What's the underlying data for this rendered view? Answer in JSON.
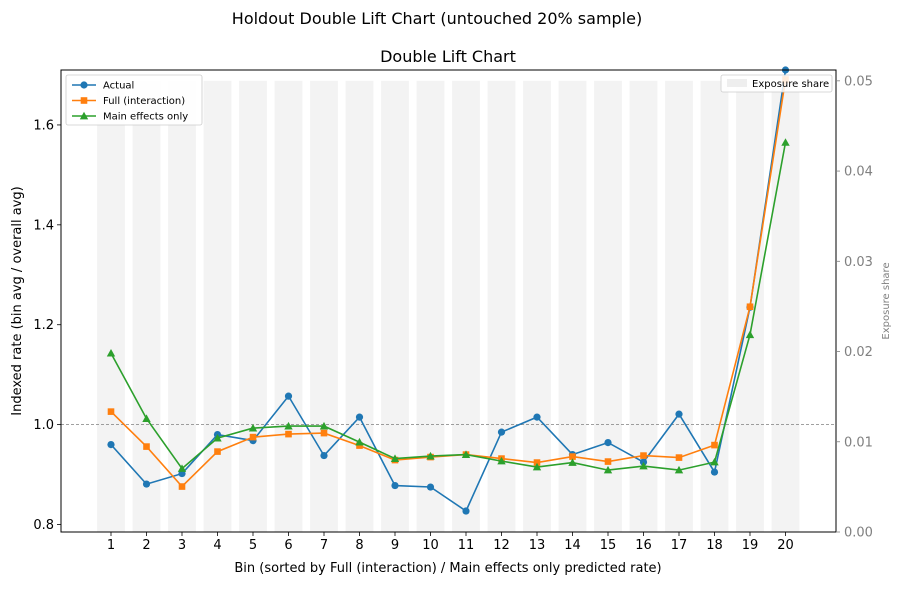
{
  "figure": {
    "suptitle": "Holdout Double Lift Chart (untouched 20% sample)"
  },
  "chart_data": {
    "type": "line",
    "title": "Double Lift Chart",
    "xlabel": "Bin (sorted by Full (interaction) / Main effects only predicted rate)",
    "ylabel": "Indexed rate (bin avg / overall avg)",
    "y2label": "Exposure share",
    "categories": [
      1,
      2,
      3,
      4,
      5,
      6,
      7,
      8,
      9,
      10,
      11,
      12,
      13,
      14,
      15,
      16,
      17,
      18,
      19,
      20
    ],
    "ylim": [
      0.785,
      1.71
    ],
    "yticks": [
      0.8,
      1.0,
      1.2,
      1.4,
      1.6
    ],
    "ytick_labels": [
      "0.8",
      "1.0",
      "1.2",
      "1.4",
      "1.6"
    ],
    "y2lim": [
      0.0,
      0.0512
    ],
    "y2ticks": [
      0.0,
      0.01,
      0.02,
      0.03,
      0.04,
      0.05
    ],
    "y2tick_labels": [
      "0.00",
      "0.01",
      "0.02",
      "0.03",
      "0.04",
      "0.05"
    ],
    "reference_line": 1.0,
    "grid": false,
    "series": [
      {
        "name": "Actual",
        "color": "#1f77b4",
        "marker": "circle",
        "values": [
          0.96,
          0.881,
          0.902,
          0.98,
          0.968,
          1.057,
          0.938,
          1.015,
          0.878,
          0.875,
          0.827,
          0.985,
          1.015,
          0.94,
          0.964,
          0.925,
          1.021,
          0.905,
          1.235,
          1.71
        ]
      },
      {
        "name": "Full (interaction)",
        "color": "#ff7f0e",
        "marker": "square",
        "values": [
          1.026,
          0.956,
          0.876,
          0.946,
          0.975,
          0.981,
          0.983,
          0.958,
          0.929,
          0.935,
          0.94,
          0.932,
          0.924,
          0.936,
          0.926,
          0.938,
          0.934,
          0.959,
          1.236,
          1.691
        ]
      },
      {
        "name": "Main effects only",
        "color": "#2ca02c",
        "marker": "triangle",
        "values": [
          1.143,
          1.012,
          0.912,
          0.973,
          0.993,
          0.997,
          0.997,
          0.965,
          0.932,
          0.937,
          0.94,
          0.927,
          0.915,
          0.924,
          0.909,
          0.917,
          0.909,
          0.925,
          1.18,
          1.565
        ]
      }
    ],
    "exposure": {
      "name": "Exposure share",
      "color": "#ebebeb",
      "values": [
        0.05,
        0.05,
        0.05,
        0.05,
        0.05,
        0.05,
        0.05,
        0.05,
        0.05,
        0.05,
        0.05,
        0.05,
        0.05,
        0.05,
        0.05,
        0.05,
        0.05,
        0.05,
        0.05,
        0.05
      ]
    },
    "legend_left_position": "upper-left",
    "legend_right_position": "upper-right"
  }
}
